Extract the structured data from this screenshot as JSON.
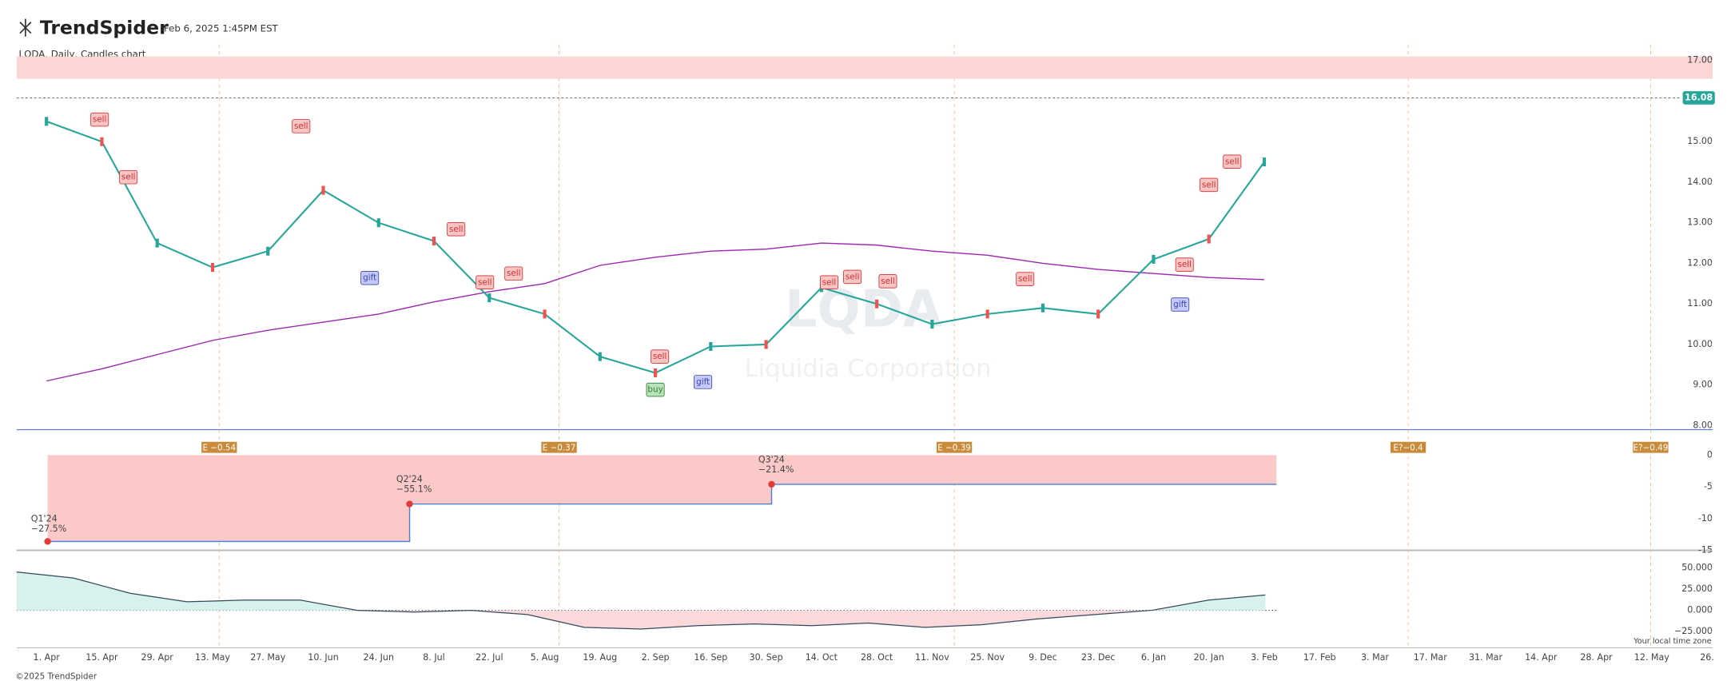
{
  "header": {
    "brand": "TrendSpider",
    "timestamp": "Feb 6, 2025 1:45PM EST",
    "chart_label": "LQDA, Daily, Candles chart",
    "watermark": "LQDA",
    "company": "Liquidia Corporation",
    "timezone_note": "Your local time zone",
    "footer": "©2025 TrendSpider"
  },
  "chart_data": [
    {
      "type": "line",
      "categories": [
        "1. Apr",
        "15. Apr",
        "29. Apr",
        "13. May",
        "27. May",
        "10. Jun",
        "24. Jun",
        "8. Jul",
        "22. Jul",
        "5. Aug",
        "19. Aug",
        "2. Sep",
        "16. Sep",
        "30. Sep",
        "14. Oct",
        "28. Oct",
        "11. Nov",
        "25. Nov",
        "9. Dec",
        "23. Dec",
        "6. Jan",
        "20. Jan",
        "3. Feb",
        "17. Feb",
        "3. Mar",
        "17. Mar",
        "31. Mar",
        "14. Apr",
        "28. Apr",
        "12. May",
        "26."
      ],
      "values": [
        15.5,
        15.0,
        12.5,
        11.9,
        12.3,
        13.8,
        13.0,
        12.55,
        11.15,
        10.75,
        9.7,
        9.3,
        9.95,
        10.0,
        11.4,
        11.0,
        10.5,
        10.75,
        10.9,
        10.75,
        12.1,
        12.6,
        14.5,
        null,
        null,
        null,
        null,
        null,
        null,
        null,
        null
      ],
      "ma_values": [
        9.1,
        9.4,
        9.75,
        10.1,
        10.35,
        10.55,
        10.75,
        11.05,
        11.3,
        11.5,
        11.95,
        12.15,
        12.3,
        12.35,
        12.5,
        12.45,
        12.3,
        12.2,
        12.0,
        11.85,
        11.75,
        11.65,
        11.6,
        null,
        null,
        null,
        null,
        null,
        null,
        null,
        null
      ],
      "color": "#26a69a",
      "ma_color": "#9c27b0",
      "ylim": [
        7.9,
        17.4
      ],
      "yticks": [
        {
          "value": 8,
          "label": "8.00"
        },
        {
          "value": 9,
          "label": "9.00"
        },
        {
          "value": 10,
          "label": "10.00"
        },
        {
          "value": 11,
          "label": "11.00"
        },
        {
          "value": 12,
          "label": "12.00"
        },
        {
          "value": 13,
          "label": "13.00"
        },
        {
          "value": 14,
          "label": "14.00"
        },
        {
          "value": 15,
          "label": "15.00"
        },
        {
          "value": 16,
          "label": "16.00"
        },
        {
          "value": 17,
          "label": "17.00"
        }
      ],
      "zone": [
        16.55,
        17.1
      ],
      "last_price": 16.08,
      "signals": [
        "sell",
        "sell",
        "sell",
        "sell",
        "sell",
        "sell",
        "sell",
        "sell",
        "sell",
        "sell",
        "sell",
        "sell",
        "sell",
        "sell",
        "buy",
        "gift",
        "gift",
        "gift"
      ],
      "earnings_flags": [
        "E −0.54",
        "E −0.37",
        "E −0.39",
        "E?−0.4",
        "E?−0.49"
      ]
    },
    {
      "type": "step",
      "categories": [
        "Q1'24",
        "Q2'24",
        "Q3'24"
      ],
      "values": [
        -13.6,
        -7.7,
        -4.6
      ],
      "annotations": [
        "−27.5%",
        "−55.1%",
        "−21.4%"
      ],
      "color": "#4a7fd8",
      "fill": "#fcc9c9",
      "ylim": [
        -15,
        0
      ],
      "yticks": [
        0,
        -5,
        -10,
        -15
      ]
    },
    {
      "type": "area",
      "values": [
        45,
        38,
        20,
        10,
        12,
        12,
        0,
        -2,
        0,
        -5,
        -20,
        -22,
        -18,
        -16,
        -18,
        -15,
        -20,
        -17,
        -10,
        -5,
        0,
        12,
        18
      ],
      "color": "#34495e",
      "pos_color": "#d7f1ec",
      "neg_color": "#fbd9db",
      "ylim": [
        -44,
        64
      ],
      "yticks": [
        {
          "value": 50,
          "label": "50.000"
        },
        {
          "value": 25,
          "label": "25.000"
        },
        {
          "value": 0,
          "label": "0.000"
        },
        {
          "value": -25,
          "label": "−25.000"
        }
      ]
    }
  ]
}
